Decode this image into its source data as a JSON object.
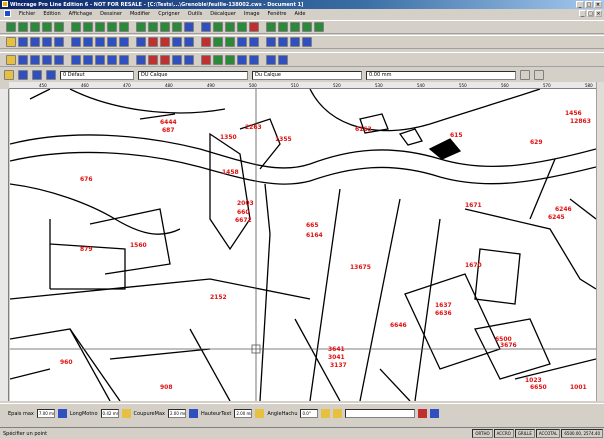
{
  "window": {
    "title": "Wincrage Pro Line Edition 6 - NOT FOR RESALE - [C:\\Tests\\...\\Grenoble\\feuille-138002.cws - Document 1]",
    "controls": [
      "_",
      "□",
      "×"
    ]
  },
  "menu": {
    "items": [
      "Fichier",
      "Edition",
      "Affichage",
      "Dessiner",
      "Modifier",
      "Cprigner",
      "Outils",
      "Décalquer",
      "Image",
      "Fenêtre",
      "Aide"
    ],
    "mdi_controls": [
      "_",
      "□",
      "×"
    ]
  },
  "toolbar": {
    "row1_colors": [
      "#2a8a3a",
      "#2a8a3a",
      "#2a8a3a",
      "#2a8a3a",
      "#2a8a3a",
      "#2a8a3a",
      "#2a8a3a",
      "#2a8a3a",
      "#2a8a3a",
      "#2a8a3a",
      "#2a8a3a",
      "#2a8a3a",
      "#2a8a3a",
      "#2a8a3a",
      "#3050c0",
      "#3050c0",
      "#2a8a3a",
      "#2a8a3a",
      "#2a8a3a",
      "#c03030",
      "#2a8a3a",
      "#2a8a3a",
      "#2a8a3a",
      "#2a8a3a",
      "#2a8a3a"
    ],
    "row2_colors": [
      "#e8c040",
      "#3050c0",
      "#3050c0",
      "#3050c0",
      "#3050c0",
      "#3050c0",
      "#3050c0",
      "#3050c0",
      "#3050c0",
      "#3050c0",
      "#3050c0",
      "#c03030",
      "#c03030",
      "#3050c0",
      "#3050c0",
      "#c03030",
      "#2a8a3a",
      "#2a8a3a",
      "#3050c0",
      "#3050c0",
      "#3050c0",
      "#3050c0",
      "#3050c0",
      "#3050c0"
    ]
  },
  "properties": {
    "layer": "0 Défaut",
    "color": "DU Calque",
    "linetype": "Du Calque",
    "lineweight": "0.00 mm"
  },
  "ruler": {
    "top_labels": [
      "450",
      "460",
      "470",
      "480",
      "490",
      "500",
      "510",
      "520",
      "530",
      "540",
      "550",
      "560",
      "570",
      "580"
    ]
  },
  "parcels": [
    {
      "label": "676"
    },
    {
      "label": "6444"
    },
    {
      "label": "687"
    },
    {
      "label": "2263"
    },
    {
      "label": "1350"
    },
    {
      "label": "1355"
    },
    {
      "label": "1458"
    },
    {
      "label": "6163"
    },
    {
      "label": "615"
    },
    {
      "label": "629"
    },
    {
      "label": "1456"
    },
    {
      "label": "12863"
    },
    {
      "label": "6246"
    },
    {
      "label": "6245"
    },
    {
      "label": "879"
    },
    {
      "label": "1560"
    },
    {
      "label": "660"
    },
    {
      "label": "6672"
    },
    {
      "label": "665"
    },
    {
      "label": "6164"
    },
    {
      "label": "2003"
    },
    {
      "label": "13675"
    },
    {
      "label": "1671"
    },
    {
      "label": "2152"
    },
    {
      "label": "1670"
    },
    {
      "label": "6646"
    },
    {
      "label": "1637"
    },
    {
      "label": "6636"
    },
    {
      "label": "6500"
    },
    {
      "label": "3676"
    },
    {
      "label": "3641"
    },
    {
      "label": "3041"
    },
    {
      "label": "3137"
    },
    {
      "label": "960"
    },
    {
      "label": "908"
    },
    {
      "label": "1023"
    },
    {
      "label": "6650"
    },
    {
      "label": "1001"
    }
  ],
  "bottom_tools": {
    "ep_label": "Epais max",
    "ep_value": "7.00 mm",
    "long_label": "LongMotno",
    "long_value": "0.42 mm",
    "coupe_label": "CoupureMax",
    "coupe_value": "2.00 mm",
    "haut_label": "HauteurText",
    "haut_value": "2.00 mm",
    "angle_label": "AngleHachu",
    "angle_value": "0.0°"
  },
  "statusbar": {
    "message": "Spécifier un point",
    "panes": [
      "ORTHO",
      "ACCRO",
      "GRILLE",
      "ACCOTAL",
      "6500.00, 2574.40"
    ]
  }
}
